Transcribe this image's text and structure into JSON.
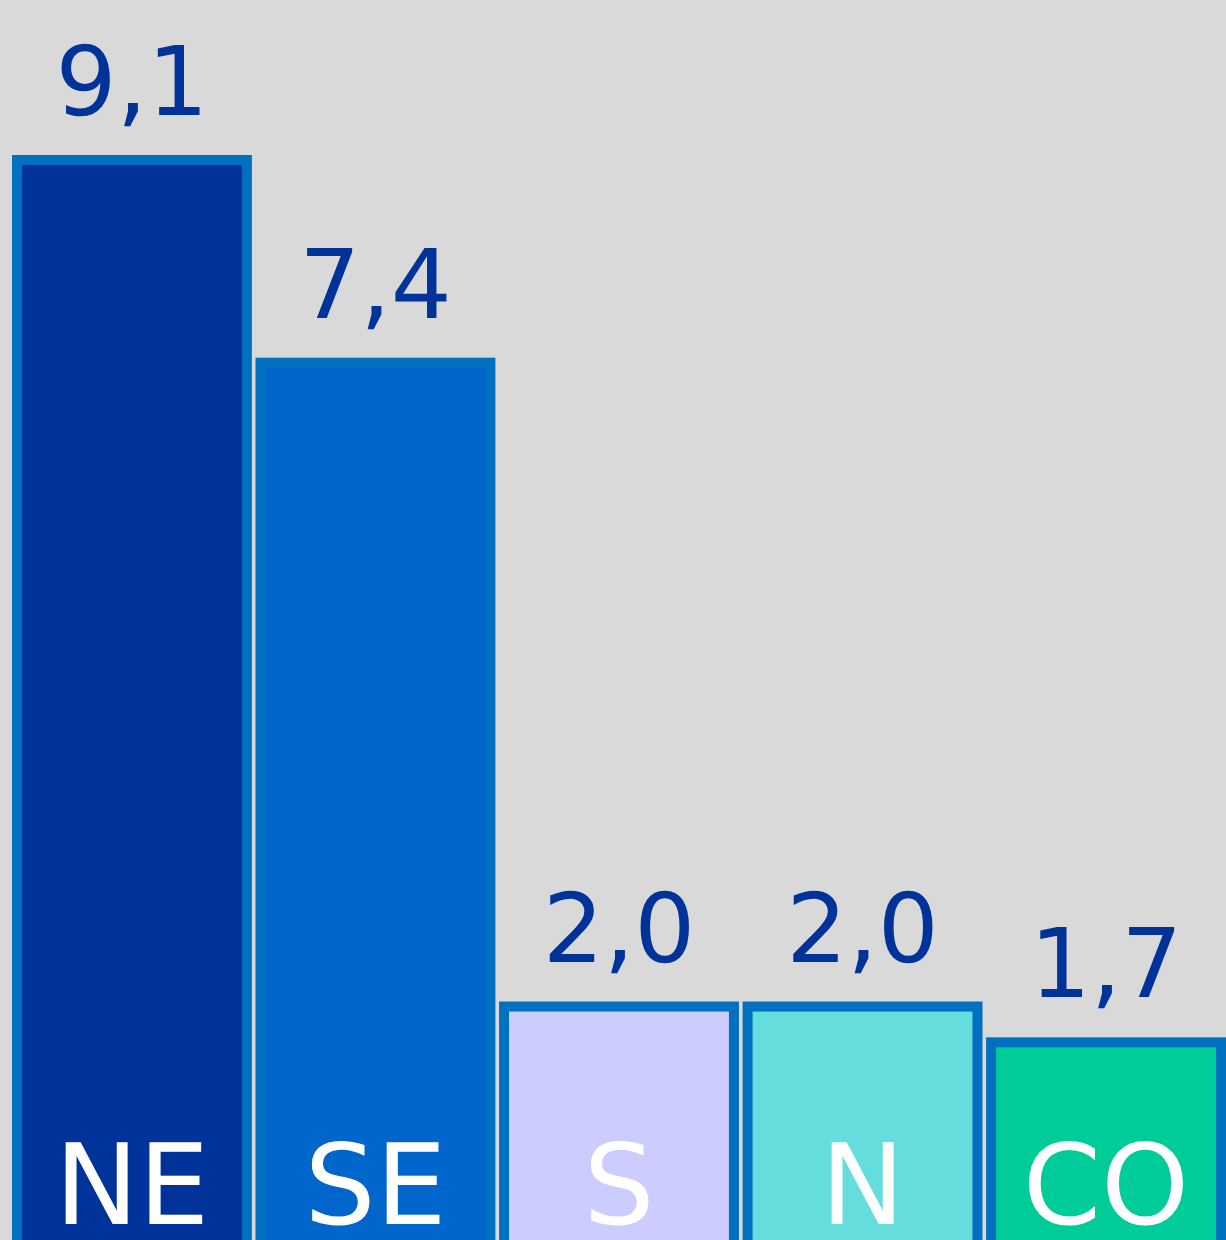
{
  "chart_data": {
    "type": "bar",
    "categories": [
      "NE",
      "SE",
      "S",
      "N",
      "CO"
    ],
    "values": [
      9.1,
      7.4,
      2.0,
      2.0,
      1.7
    ],
    "colors": [
      "#00339a",
      "#0066cc",
      "#ccccff",
      "#66dddd",
      "#00cc99"
    ],
    "value_labels": [
      "9,1",
      "7,4",
      "2,0",
      "2,0",
      "1,7"
    ],
    "ylim": [
      0,
      10.4
    ]
  }
}
